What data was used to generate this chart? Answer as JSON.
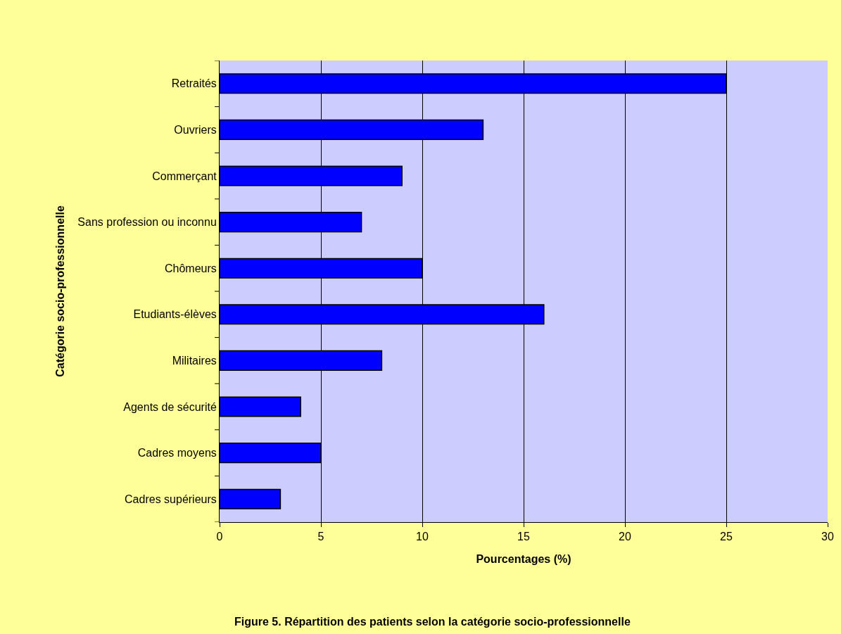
{
  "chart_data": {
    "type": "bar",
    "orientation": "horizontal",
    "xlabel": "Pourcentages (%)",
    "ylabel": "Catégorie socio-professionnelle",
    "categories": [
      "Retraités",
      "Ouvriers",
      "Commerçant",
      "Sans profession ou inconnu",
      "Chômeurs",
      "Etudiants-élèves",
      "Militaires",
      "Agents de sécurité",
      "Cadres moyens",
      "Cadres supérieurs"
    ],
    "values": [
      25,
      13,
      9,
      7,
      10,
      16,
      8,
      4,
      5,
      3
    ],
    "color": "#0000ff",
    "xlim": [
      0,
      30
    ],
    "xticks": [
      0,
      5,
      10,
      15,
      20,
      25,
      30
    ],
    "grid": "x",
    "annotations": [
      "Figure 5. Répartition des patients selon la catégorie socio-professionnelle"
    ]
  }
}
